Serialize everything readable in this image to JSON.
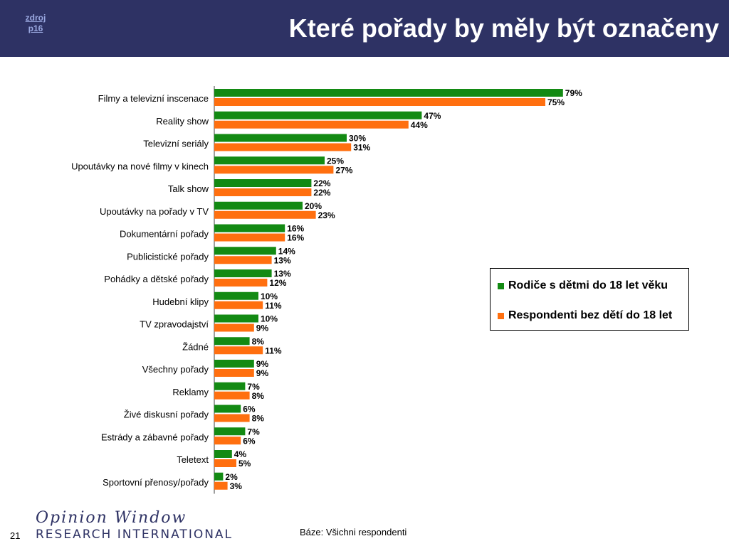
{
  "header": {
    "source_line1": "zdroj",
    "source_line2": "p16",
    "title": "Které pořady by měly být označeny"
  },
  "colors": {
    "header_bg": "#2e3264",
    "series1": "#138a13",
    "series2": "#ff6f0f"
  },
  "chart_data": {
    "type": "bar",
    "orientation": "horizontal",
    "xlim": [
      0,
      100
    ],
    "grid": false,
    "legend_position": "right",
    "categories": [
      "Filmy a televizní inscenace",
      "Reality show",
      "Televizní seriály",
      "Upoutávky na nové filmy v kinech",
      "Talk show",
      "Upoutávky na pořady v TV",
      "Dokumentární pořady",
      "Publicistické pořady",
      "Pohádky a dětské pořady",
      "Hudební klipy",
      "TV zpravodajství",
      "Žádné",
      "Všechny pořady",
      "Reklamy",
      "Živé diskusní pořady",
      "Estrády a zábavné pořady",
      "Teletext",
      "Sportovní přenosy/pořady"
    ],
    "series": [
      {
        "name": "Rodiče s dětmi do 18 let věku",
        "values": [
          79,
          47,
          30,
          25,
          22,
          20,
          16,
          14,
          13,
          10,
          10,
          8,
          9,
          7,
          6,
          7,
          4,
          2
        ]
      },
      {
        "name": "Respondenti bez dětí do 18 let",
        "values": [
          75,
          44,
          31,
          27,
          22,
          23,
          16,
          13,
          12,
          11,
          9,
          11,
          9,
          8,
          8,
          6,
          5,
          3
        ]
      }
    ],
    "value_suffix": "%"
  },
  "legend": {
    "item1": "Rodiče s dětmi do 18 let věku",
    "item2": "Respondenti bez dětí do 18 let"
  },
  "footer": {
    "slide_number": "21",
    "base_note": "Báze: Všichni respondenti",
    "logo_script": "Opinion Window",
    "logo_text": "RESEARCH INTERNATIONAL"
  }
}
